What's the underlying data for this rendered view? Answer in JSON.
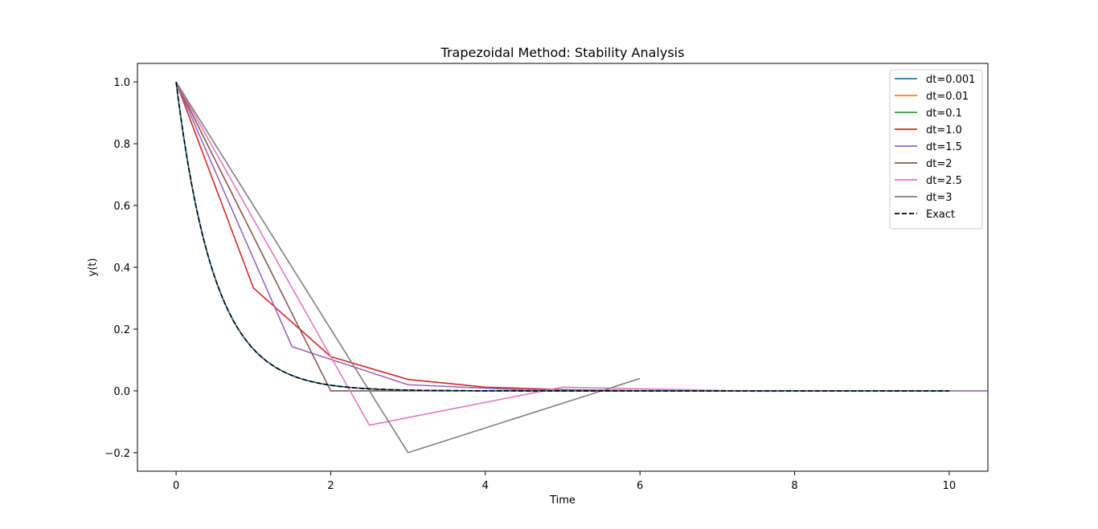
{
  "chart_data": {
    "type": "line",
    "title": "Trapezoidal Method: Stability Analysis",
    "xlabel": "Time",
    "ylabel": "y(t)",
    "xlim": [
      -0.5,
      10.5
    ],
    "ylim": [
      -0.26,
      1.06
    ],
    "xticks": [
      0,
      2,
      4,
      6,
      8,
      10
    ],
    "xtick_labels": [
      "0",
      "2",
      "4",
      "6",
      "8",
      "10"
    ],
    "yticks": [
      -0.2,
      0.0,
      0.2,
      0.4,
      0.6,
      0.8,
      1.0
    ],
    "ytick_labels": [
      "−0.2",
      "0.0",
      "0.2",
      "0.4",
      "0.6",
      "0.8",
      "1.0"
    ],
    "grid": false,
    "legend_position": "top-right",
    "series": [
      {
        "name": "dt=0.001",
        "color": "#1f77b4",
        "style": "solid",
        "exact": true
      },
      {
        "name": "dt=0.01",
        "color": "#ff7f0e",
        "style": "solid",
        "exact": true
      },
      {
        "name": "dt=0.1",
        "color": "#2ca02c",
        "style": "solid",
        "exact": true
      },
      {
        "name": "dt=1.0",
        "color": "#d62728",
        "style": "solid",
        "x": [
          0,
          1,
          2,
          3,
          4,
          5,
          6,
          7,
          8,
          9,
          10
        ],
        "y": [
          1.0,
          0.333,
          0.111,
          0.037,
          0.012,
          0.004,
          0.001,
          0.0,
          0.0,
          0.0,
          0.0
        ]
      },
      {
        "name": "dt=1.5",
        "color": "#9467bd",
        "style": "solid",
        "x": [
          0,
          1.5,
          3,
          4.5,
          6,
          7.5,
          9,
          10.5
        ],
        "y": [
          1.0,
          0.143,
          0.02,
          0.003,
          0.0,
          0.0,
          0.0,
          0.0
        ]
      },
      {
        "name": "dt=2",
        "color": "#8c564b",
        "style": "solid",
        "x": [
          0,
          2,
          4,
          6,
          8,
          10
        ],
        "y": [
          1.0,
          0.0,
          0.0,
          0.0,
          0.0,
          0.0
        ]
      },
      {
        "name": "dt=2.5",
        "color": "#e377c2",
        "style": "solid",
        "x": [
          0,
          2.5,
          5,
          7.5,
          10
        ],
        "y": [
          1.0,
          -0.111,
          0.012,
          -0.001,
          0.0
        ]
      },
      {
        "name": "dt=3",
        "color": "#7f7f7f",
        "style": "solid",
        "x": [
          0,
          3,
          6
        ],
        "y": [
          1.0,
          -0.2,
          0.04
        ]
      },
      {
        "name": "Exact",
        "color": "#000000",
        "style": "dashed",
        "exact": true
      }
    ]
  }
}
